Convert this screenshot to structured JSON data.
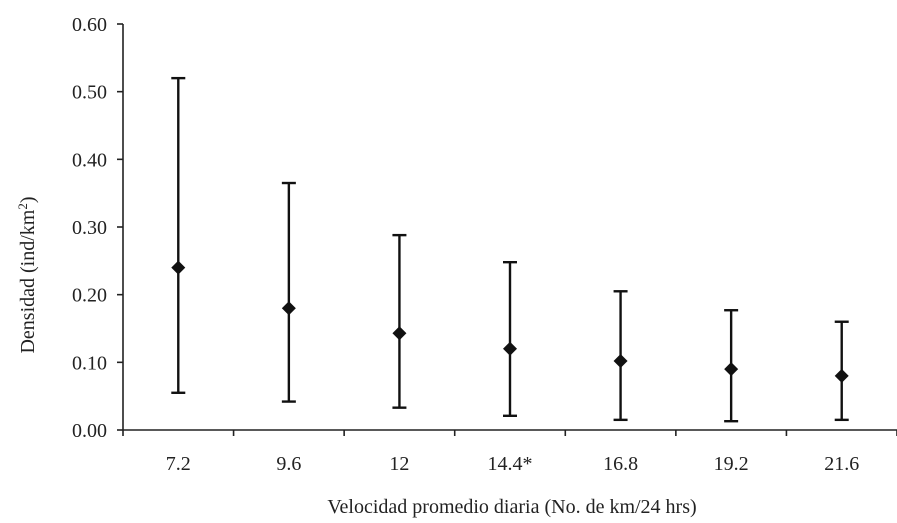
{
  "chart_data": {
    "type": "scatter",
    "title": "",
    "xlabel": "Velocidad promedio diaria (No. de km/24 hrs)",
    "ylabel": {
      "main": "Densidad (ind/km",
      "sup": "2",
      "close": ")"
    },
    "categories": [
      "7.2",
      "9.6",
      "12",
      "14.4*",
      "16.8",
      "19.2",
      "21.6"
    ],
    "values": [
      0.24,
      0.18,
      0.143,
      0.12,
      0.102,
      0.09,
      0.08
    ],
    "error_low": [
      0.055,
      0.042,
      0.033,
      0.021,
      0.015,
      0.013,
      0.015
    ],
    "error_high": [
      0.52,
      0.365,
      0.288,
      0.248,
      0.205,
      0.177,
      0.16
    ],
    "ylim": [
      0,
      0.6
    ],
    "yticks": [
      "0.00",
      "0.10",
      "0.20",
      "0.30",
      "0.40",
      "0.50",
      "0.60"
    ],
    "grid": false,
    "legend": "none",
    "marker": "diamond",
    "color": "#111111"
  }
}
